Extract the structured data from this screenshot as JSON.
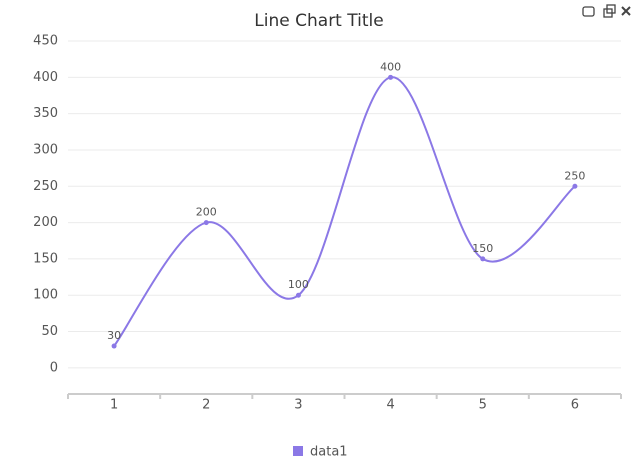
{
  "chart_data": {
    "type": "line",
    "title": "Line Chart Title",
    "categories": [
      "1",
      "2",
      "3",
      "4",
      "5",
      "6"
    ],
    "series": [
      {
        "name": "data1",
        "color": "#8b78e6",
        "values": [
          30,
          200,
          100,
          400,
          150,
          250
        ]
      }
    ],
    "ylim": [
      -36,
      450
    ],
    "yticks": [
      0,
      50,
      100,
      150,
      200,
      250,
      300,
      350,
      400,
      450
    ],
    "grid": true,
    "legend": "bottom"
  }
}
